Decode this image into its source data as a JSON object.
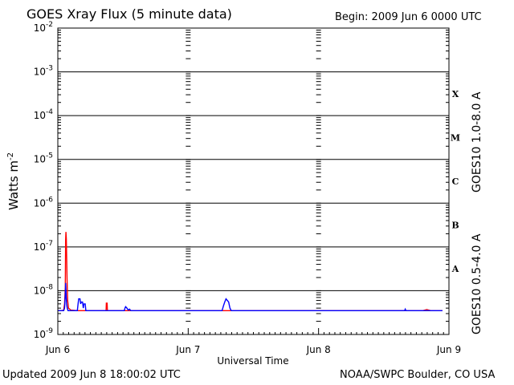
{
  "header": {
    "title": "GOES Xray Flux (5 minute data)",
    "begin_label": "Begin:",
    "begin_value": "2009 Jun 6 0000 UTC"
  },
  "footer": {
    "updated": "Updated 2009 Jun  8 18:00:02 UTC",
    "credit": "NOAA/SWPC Boulder, CO USA"
  },
  "chart_data": {
    "type": "line",
    "title": "GOES Xray Flux (5 minute data)",
    "xlabel": "Universal Time",
    "ylabel": "Watts m",
    "ylabel_sup": "-2",
    "y_scale": "log",
    "ylim": [
      1e-09,
      0.01
    ],
    "xlim_days": [
      0,
      3
    ],
    "x_ticks": [
      {
        "label": "Jun 6",
        "day": 0
      },
      {
        "label": "Jun 7",
        "day": 1
      },
      {
        "label": "Jun 8",
        "day": 2
      },
      {
        "label": "Jun 9",
        "day": 3
      }
    ],
    "y_ticks": [
      {
        "base": "10",
        "exp": "-9",
        "value": 1e-09
      },
      {
        "base": "10",
        "exp": "-8",
        "value": 1e-08
      },
      {
        "base": "10",
        "exp": "-7",
        "value": 1e-07
      },
      {
        "base": "10",
        "exp": "-6",
        "value": 1e-06
      },
      {
        "base": "10",
        "exp": "-5",
        "value": 1e-05
      },
      {
        "base": "10",
        "exp": "-4",
        "value": 0.0001
      },
      {
        "base": "10",
        "exp": "-3",
        "value": 0.001
      },
      {
        "base": "10",
        "exp": "-2",
        "value": 0.01
      }
    ],
    "flare_classes": [
      {
        "label": "A",
        "lower": 1e-08,
        "upper": 1e-07
      },
      {
        "label": "B",
        "lower": 1e-07,
        "upper": 1e-06
      },
      {
        "label": "C",
        "lower": 1e-06,
        "upper": 1e-05
      },
      {
        "label": "M",
        "lower": 1e-05,
        "upper": 0.0001
      },
      {
        "label": "X",
        "lower": 0.0001,
        "upper": 0.001
      }
    ],
    "grid": true,
    "series": [
      {
        "name": "GOES10 1.0-8.0 A",
        "color": "#ff0000",
        "points": [
          [
            0.0,
            3.5e-09
          ],
          [
            0.03,
            3.5e-09
          ],
          [
            0.045,
            3.6e-09
          ],
          [
            0.052,
            5e-09
          ],
          [
            0.057,
            1.2e-08
          ],
          [
            0.06,
            1.4e-07
          ],
          [
            0.062,
            2.2e-07
          ],
          [
            0.065,
            1.5e-07
          ],
          [
            0.068,
            6e-08
          ],
          [
            0.071,
            1.8e-08
          ],
          [
            0.075,
            6e-09
          ],
          [
            0.082,
            4e-09
          ],
          [
            0.1,
            3.6e-09
          ],
          [
            0.15,
            3.5e-09
          ],
          [
            0.37,
            3.5e-09
          ],
          [
            0.372,
            5.2e-09
          ],
          [
            0.378,
            5.2e-09
          ],
          [
            0.38,
            3.5e-09
          ],
          [
            2.8,
            3.5e-09
          ],
          [
            2.83,
            3.7e-09
          ],
          [
            2.86,
            3.5e-09
          ],
          [
            2.95,
            3.5e-09
          ]
        ]
      },
      {
        "name": "GOES10 0.5-4.0 A",
        "color": "#0000ff",
        "points": [
          [
            0.0,
            3.5e-09
          ],
          [
            0.045,
            3.5e-09
          ],
          [
            0.052,
            4e-09
          ],
          [
            0.057,
            8e-09
          ],
          [
            0.06,
            1.5e-08
          ],
          [
            0.063,
            9e-09
          ],
          [
            0.067,
            5e-09
          ],
          [
            0.072,
            4e-09
          ],
          [
            0.078,
            3.5e-09
          ],
          [
            0.15,
            3.5e-09
          ],
          [
            0.155,
            5e-09
          ],
          [
            0.16,
            6.5e-09
          ],
          [
            0.17,
            6.5e-09
          ],
          [
            0.175,
            5e-09
          ],
          [
            0.18,
            5.5e-09
          ],
          [
            0.19,
            5.5e-09
          ],
          [
            0.195,
            4e-09
          ],
          [
            0.2,
            5e-09
          ],
          [
            0.21,
            5e-09
          ],
          [
            0.215,
            3.5e-09
          ],
          [
            0.51,
            3.5e-09
          ],
          [
            0.515,
            4e-09
          ],
          [
            0.52,
            4.3e-09
          ],
          [
            0.53,
            4e-09
          ],
          [
            0.54,
            3.6e-09
          ],
          [
            0.55,
            3.8e-09
          ],
          [
            0.56,
            3.5e-09
          ],
          [
            1.26,
            3.5e-09
          ],
          [
            1.27,
            4.5e-09
          ],
          [
            1.28,
            5.5e-09
          ],
          [
            1.29,
            6.5e-09
          ],
          [
            1.3,
            6e-09
          ],
          [
            1.31,
            5.5e-09
          ],
          [
            1.32,
            4e-09
          ],
          [
            1.33,
            3.5e-09
          ],
          [
            2.66,
            3.5e-09
          ],
          [
            2.665,
            3.8e-09
          ],
          [
            2.67,
            3.5e-09
          ],
          [
            2.95,
            3.5e-09
          ]
        ]
      }
    ]
  }
}
